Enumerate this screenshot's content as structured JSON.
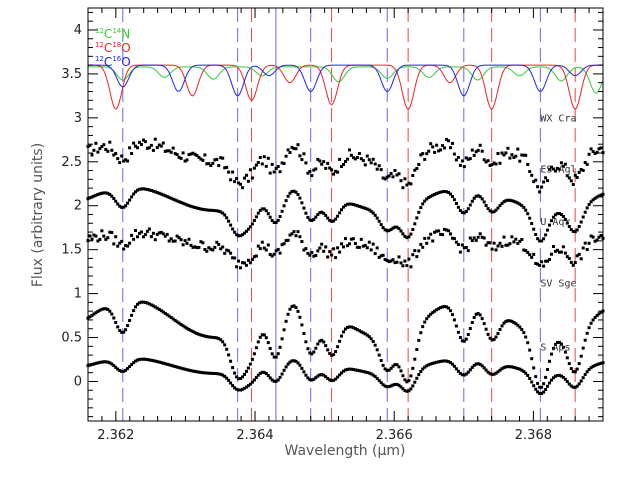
{
  "chart_data": {
    "type": "scatter",
    "xlabel": "Wavelength (μm)",
    "ylabel": "Flux (arbitrary units)",
    "xlim": [
      2.3616,
      2.369
    ],
    "ylim": [
      -0.45,
      4.25
    ],
    "x_ticks": [
      2.362,
      2.364,
      2.366,
      2.368
    ],
    "x_tick_labels": [
      "2.362",
      "2.364",
      "2.366",
      "2.368"
    ],
    "y_ticks": [
      0,
      0.5,
      1,
      1.5,
      2,
      2.5,
      3,
      3.5,
      4
    ],
    "y_tick_labels": [
      "0",
      "0.5",
      "1",
      "1.5",
      "2",
      "2.5",
      "3",
      "3.5",
      "4"
    ],
    "grid": false,
    "legend": {
      "position": "top-left",
      "entries": [
        {
          "sup1": "12",
          "base1": "C",
          "sup2": "14",
          "base2": "N",
          "color": "#33cc33"
        },
        {
          "sup1": "12",
          "base1": "C",
          "sup2": "18",
          "base2": "O",
          "color": "#ee2222"
        },
        {
          "sup1": "12",
          "base1": "C",
          "sup2": "16",
          "base2": "O",
          "color": "#2222ee"
        }
      ]
    },
    "line_markers": {
      "blue_dashed": [
        2.3621,
        2.36375,
        2.3648,
        2.3659,
        2.367,
        2.3681
      ],
      "blue_solid": [
        2.3643
      ],
      "red_dashed": [
        2.36395,
        2.3651,
        2.3662,
        2.3674,
        2.3686
      ]
    },
    "model_series": [
      {
        "color": "#33cc33",
        "offset": 3.58,
        "dips": [
          [
            2.3621,
            0.15
          ],
          [
            2.3627,
            0.12
          ],
          [
            2.3634,
            0.14
          ],
          [
            2.3641,
            0.1
          ],
          [
            2.3652,
            0.17
          ],
          [
            2.3659,
            0.13
          ],
          [
            2.3665,
            0.12
          ],
          [
            2.3672,
            0.15
          ],
          [
            2.3678,
            0.1
          ],
          [
            2.3684,
            0.16
          ],
          [
            2.3689,
            0.3
          ]
        ]
      },
      {
        "color": "#ee2222",
        "offset": 3.6,
        "dips": [
          [
            2.362,
            0.5
          ],
          [
            2.3631,
            0.35
          ],
          [
            2.36395,
            0.4
          ],
          [
            2.3645,
            0.2
          ],
          [
            2.3651,
            0.45
          ],
          [
            2.3662,
            0.5
          ],
          [
            2.3668,
            0.2
          ],
          [
            2.3674,
            0.5
          ],
          [
            2.3686,
            0.5
          ]
        ]
      },
      {
        "color": "#2222ee",
        "offset": 3.6,
        "dips": [
          [
            2.3621,
            0.25
          ],
          [
            2.3629,
            0.3
          ],
          [
            2.36375,
            0.35
          ],
          [
            2.3642,
            0.12
          ],
          [
            2.3648,
            0.3
          ],
          [
            2.3659,
            0.3
          ],
          [
            2.367,
            0.35
          ],
          [
            2.3681,
            0.3
          ],
          [
            2.3686,
            0.12
          ]
        ]
      }
    ],
    "series": [
      {
        "name": "WX Cra",
        "offset": 2.62,
        "amplitude": 0.33,
        "noise": 0.07,
        "label_x": 2.3681,
        "label_y": 2.96
      },
      {
        "name": "ES Aql",
        "offset": 2.08,
        "amplitude": 0.38,
        "noise": 0.0,
        "label_x": 2.3681,
        "label_y": 2.38
      },
      {
        "name": "U Aqr",
        "offset": 1.62,
        "amplitude": 0.25,
        "noise": 0.06,
        "label_x": 2.3681,
        "label_y": 1.78
      },
      {
        "name": "SV Sge",
        "offset": 0.72,
        "amplitude": 0.62,
        "noise": 0.0,
        "label_x": 2.3681,
        "label_y": 1.08
      },
      {
        "name": "S Aps",
        "offset": 0.18,
        "amplitude": 0.25,
        "noise": 0.0,
        "label_x": 2.3681,
        "label_y": 0.35
      }
    ]
  }
}
